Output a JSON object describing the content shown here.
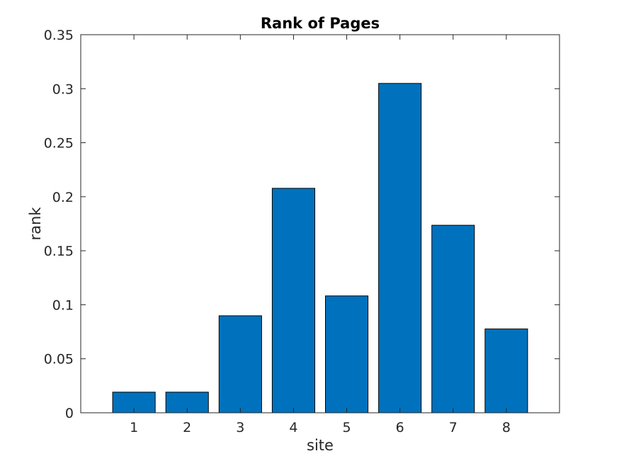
{
  "chart_data": {
    "type": "bar",
    "title": "Rank of Pages",
    "xlabel": "site",
    "ylabel": "rank",
    "categories": [
      "1",
      "2",
      "3",
      "4",
      "5",
      "6",
      "7",
      "8"
    ],
    "values": [
      0.0191,
      0.0191,
      0.0898,
      0.2078,
      0.1082,
      0.3049,
      0.1736,
      0.0776
    ],
    "xlim": [
      0,
      9
    ],
    "ylim": [
      0,
      0.35
    ],
    "yticks": [
      0,
      0.05,
      0.1,
      0.15,
      0.2,
      0.25,
      0.3,
      0.35
    ],
    "ytick_labels": [
      "0",
      "0.05",
      "0.1",
      "0.15",
      "0.2",
      "0.25",
      "0.3",
      "0.35"
    ],
    "grid": false,
    "legend": "none",
    "bar_color": "#0072BD",
    "edge_color": "#000000"
  }
}
